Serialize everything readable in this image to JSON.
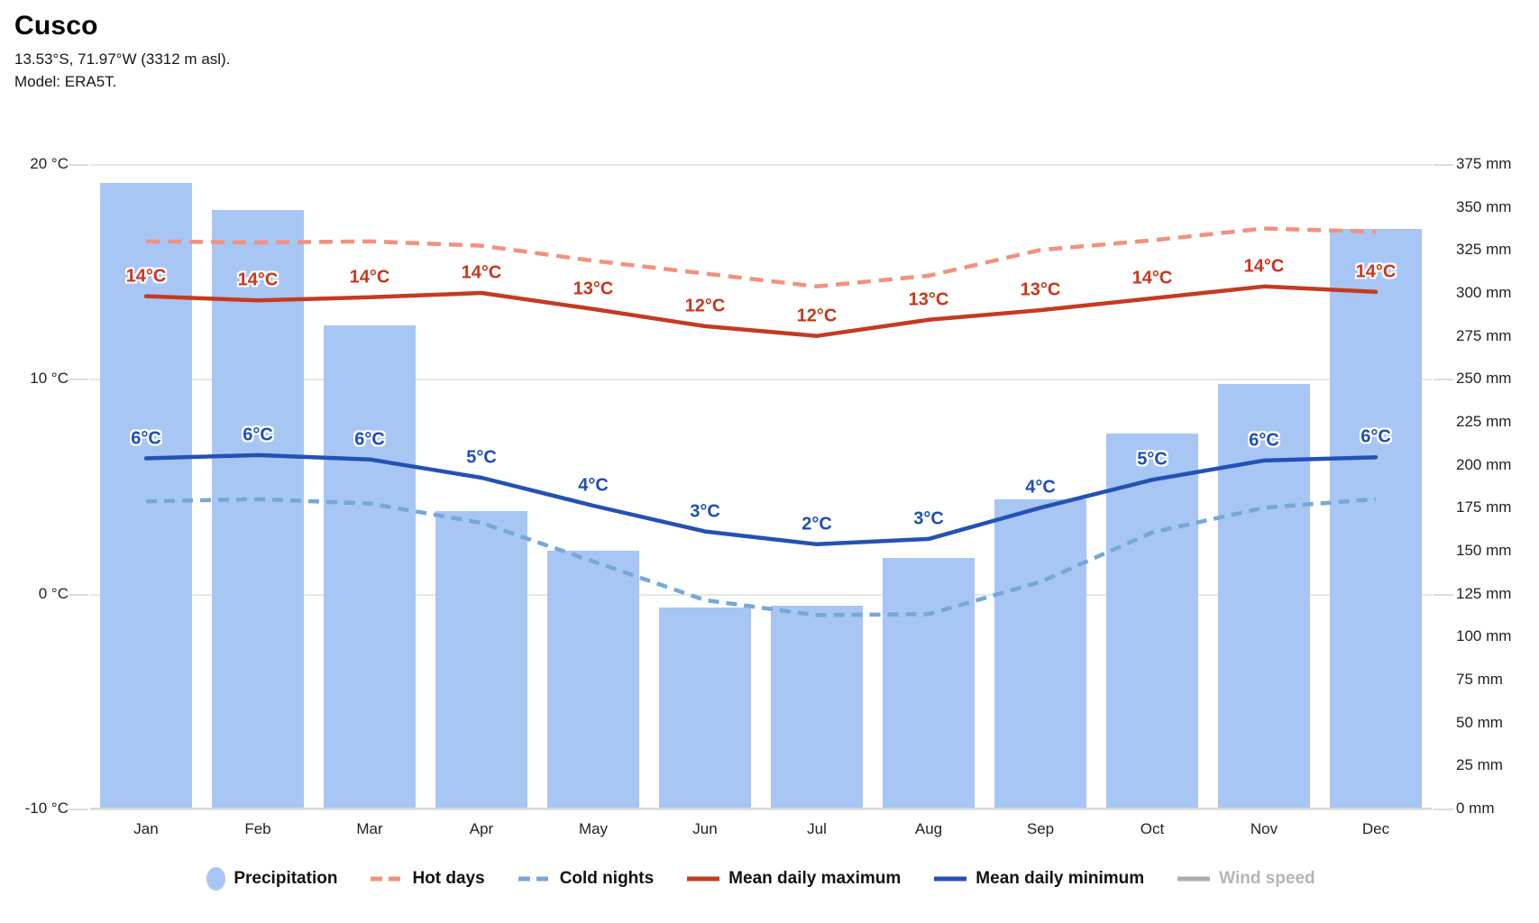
{
  "header": {
    "title": "Cusco",
    "subtitle": "13.53°S, 71.97°W (3312 m asl).",
    "model_line": "Model: ERA5T."
  },
  "chart_data": {
    "type": "combo",
    "categories": [
      "Jan",
      "Feb",
      "Mar",
      "Apr",
      "May",
      "Jun",
      "Jul",
      "Aug",
      "Sep",
      "Oct",
      "Nov",
      "Dec"
    ],
    "left_axis": {
      "unit": "°C",
      "min": -10,
      "max": 20,
      "tick_labels": [
        "20 °C",
        "10 °C",
        "0 °C",
        "-10 °C"
      ],
      "tick_values": [
        20,
        10,
        0,
        -10
      ]
    },
    "right_axis": {
      "unit": "mm",
      "min": 0,
      "max": 375,
      "step": 25,
      "tick_labels": [
        "375 mm",
        "350 mm",
        "325 mm",
        "300 mm",
        "275 mm",
        "250 mm",
        "225 mm",
        "200 mm",
        "175 mm",
        "150 mm",
        "125 mm",
        "100 mm",
        "75 mm",
        "50 mm",
        "25 mm",
        "0 mm"
      ]
    },
    "grid": "horizontal gridlines at 20, 10, 0, -10 °C (= 375, 250, 125, 0 mm)",
    "legend_position": "bottom",
    "series": [
      {
        "name": "Precipitation",
        "type": "bar",
        "axis": "right",
        "unit": "mm",
        "color": "#a8c6f4",
        "values": [
          364,
          348,
          281,
          173,
          150,
          117,
          118,
          146,
          180,
          218,
          247,
          337
        ]
      },
      {
        "name": "Hot days",
        "type": "line",
        "line_style": "dashed",
        "axis": "left",
        "unit": "°C",
        "color": "#f2917f",
        "values": [
          16.4,
          16.35,
          16.4,
          16.2,
          15.5,
          14.9,
          14.3,
          14.8,
          16.0,
          16.45,
          17.0,
          16.85
        ]
      },
      {
        "name": "Cold nights",
        "type": "line",
        "line_style": "dashed",
        "axis": "left",
        "unit": "°C",
        "color": "#77a7d7",
        "values": [
          4.3,
          4.4,
          4.2,
          3.3,
          1.5,
          -0.3,
          -1.0,
          -0.95,
          0.55,
          2.85,
          4.0,
          4.4
        ]
      },
      {
        "name": "Mean daily maximum",
        "type": "line",
        "line_style": "solid",
        "axis": "left",
        "unit": "°C",
        "color": "#c33b23",
        "label_color": "#c8371d",
        "values": [
          13.85,
          13.65,
          13.8,
          14.0,
          13.25,
          12.45,
          12.0,
          12.75,
          13.2,
          13.75,
          14.3,
          14.05
        ],
        "point_labels": [
          "14°C",
          "14°C",
          "14°C",
          "14°C",
          "13°C",
          "12°C",
          "12°C",
          "13°C",
          "13°C",
          "14°C",
          "14°C",
          "14°C"
        ]
      },
      {
        "name": "Mean daily minimum",
        "type": "line",
        "line_style": "solid",
        "axis": "left",
        "unit": "°C",
        "color": "#2351b5",
        "label_color": "#1e4eb4",
        "values": [
          6.3,
          6.45,
          6.25,
          5.4,
          4.1,
          2.9,
          2.3,
          2.55,
          4.0,
          5.3,
          6.2,
          6.35
        ],
        "point_labels": [
          "6°C",
          "6°C",
          "6°C",
          "5°C",
          "4°C",
          "3°C",
          "2°C",
          "3°C",
          "4°C",
          "5°C",
          "6°C",
          "6°C"
        ]
      },
      {
        "name": "Wind speed",
        "type": "line",
        "line_style": "solid",
        "axis": "none",
        "unit": "",
        "color": "#ababab",
        "disabled": true,
        "values": []
      }
    ]
  }
}
